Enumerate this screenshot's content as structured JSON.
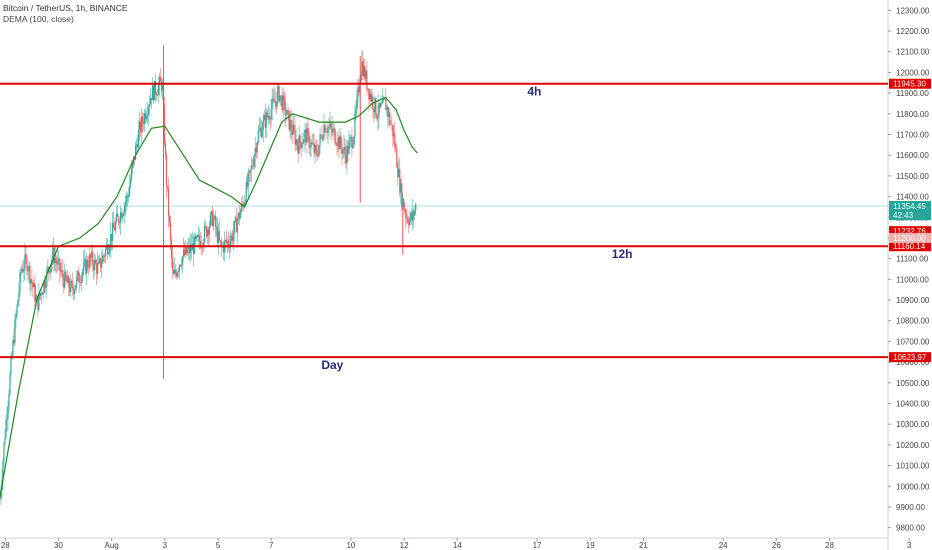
{
  "header": {
    "symbol": "Bitcoin / TetherUS, 1h, BINANCE",
    "indicator": "DEMA (100, close)"
  },
  "chart_data": {
    "type": "candlestick",
    "symbol": "Bitcoin / TetherUS",
    "interval": "1h",
    "exchange": "BINANCE",
    "indicator": "DEMA (100, close)",
    "ylim": [
      9750,
      12350
    ],
    "y_ticks": [
      12300,
      12200,
      12100,
      12000,
      11900,
      11800,
      11700,
      11600,
      11500,
      11400,
      11300,
      11200,
      11100,
      11000,
      10900,
      10800,
      10700,
      10600,
      10500,
      10400,
      10300,
      10200,
      10100,
      10000,
      9900,
      9800
    ],
    "x_ticks": [
      "28",
      "30",
      "Aug",
      "3",
      "5",
      "7",
      "10",
      "12",
      "14",
      "17",
      "19",
      "21",
      "24",
      "26",
      "28",
      "3"
    ],
    "x_tick_day_index": [
      0,
      2,
      4,
      6,
      8,
      10,
      13,
      15,
      17,
      20,
      22,
      24,
      27,
      29,
      31,
      34
    ],
    "x_start_day": -0.2,
    "x_end_day": 33.2,
    "price_points": [
      [
        -0.2,
        9940
      ],
      [
        0.0,
        10280
      ],
      [
        0.3,
        10700
      ],
      [
        0.6,
        11050
      ],
      [
        0.8,
        11090
      ],
      [
        1.2,
        10880
      ],
      [
        1.5,
        11000
      ],
      [
        1.8,
        11120
      ],
      [
        2.2,
        11000
      ],
      [
        2.5,
        10950
      ],
      [
        2.8,
        11020
      ],
      [
        3.2,
        11100
      ],
      [
        3.5,
        11050
      ],
      [
        3.8,
        11150
      ],
      [
        4.1,
        11250
      ],
      [
        4.6,
        11400
      ],
      [
        5.0,
        11700
      ],
      [
        5.5,
        11900
      ],
      [
        5.9,
        11950
      ],
      [
        6.05,
        11500
      ],
      [
        6.3,
        11000
      ],
      [
        6.6,
        11100
      ],
      [
        7.0,
        11150
      ],
      [
        7.4,
        11200
      ],
      [
        7.8,
        11300
      ],
      [
        8.1,
        11150
      ],
      [
        8.5,
        11200
      ],
      [
        8.9,
        11350
      ],
      [
        9.2,
        11500
      ],
      [
        9.5,
        11700
      ],
      [
        9.9,
        11800
      ],
      [
        10.3,
        11900
      ],
      [
        10.7,
        11750
      ],
      [
        11.0,
        11650
      ],
      [
        11.3,
        11700
      ],
      [
        11.7,
        11600
      ],
      [
        12.0,
        11750
      ],
      [
        12.4,
        11700
      ],
      [
        12.8,
        11600
      ],
      [
        13.1,
        11700
      ],
      [
        13.4,
        12050
      ],
      [
        13.7,
        11900
      ],
      [
        14.0,
        11800
      ],
      [
        14.3,
        11850
      ],
      [
        14.6,
        11700
      ],
      [
        14.9,
        11400
      ],
      [
        15.1,
        11300
      ],
      [
        15.3,
        11290
      ],
      [
        15.45,
        11360
      ]
    ],
    "dema_points": [
      [
        -0.2,
        9950
      ],
      [
        0.5,
        10460
      ],
      [
        1.2,
        10910
      ],
      [
        2.0,
        11160
      ],
      [
        2.8,
        11200
      ],
      [
        3.5,
        11270
      ],
      [
        4.2,
        11400
      ],
      [
        4.9,
        11600
      ],
      [
        5.5,
        11730
      ],
      [
        6.0,
        11740
      ],
      [
        6.6,
        11620
      ],
      [
        7.3,
        11480
      ],
      [
        7.9,
        11440
      ],
      [
        8.5,
        11400
      ],
      [
        9.0,
        11350
      ],
      [
        9.4,
        11460
      ],
      [
        9.9,
        11610
      ],
      [
        10.4,
        11760
      ],
      [
        10.8,
        11800
      ],
      [
        11.3,
        11780
      ],
      [
        11.8,
        11760
      ],
      [
        12.3,
        11760
      ],
      [
        12.8,
        11760
      ],
      [
        13.3,
        11790
      ],
      [
        13.8,
        11850
      ],
      [
        14.3,
        11880
      ],
      [
        14.7,
        11820
      ],
      [
        15.0,
        11720
      ],
      [
        15.3,
        11640
      ],
      [
        15.5,
        11610
      ]
    ],
    "spike_points": [
      {
        "day": 5.95,
        "high": 12130,
        "low": 10520
      },
      {
        "day": 13.35,
        "high": 12080,
        "low": 11370
      },
      {
        "day": 14.95,
        "high": 11350,
        "low": 11120
      }
    ],
    "horizontal_levels": [
      {
        "value": 11945.3,
        "label": "11945.30",
        "zone": "4h",
        "zone_day": 19.9
      },
      {
        "value": 11160.14,
        "label": "11160.14",
        "zone": "12h",
        "zone_day": 23.2
      },
      {
        "value": 10623.97,
        "label": "10623.97",
        "zone": "Day",
        "zone_day": 12.3
      }
    ],
    "price_markers": [
      {
        "value": 11354.45,
        "label": "11354.45",
        "kind": "last"
      },
      {
        "value": 11310,
        "label": "42:43",
        "kind": "countdown"
      },
      {
        "value": 11232.76,
        "label": "11232.76",
        "kind": "level"
      },
      {
        "value": 11200,
        "label": "11200.00",
        "kind": "hidden"
      }
    ],
    "last_price_line": 11354.45,
    "colors": {
      "level_line": "#e00000",
      "up_candle": "#26a69a",
      "down_candle": "#ef5350",
      "dema": "#1d8a1d",
      "last_price": "#26a69a",
      "zone_text": "#2a2a7a"
    }
  }
}
